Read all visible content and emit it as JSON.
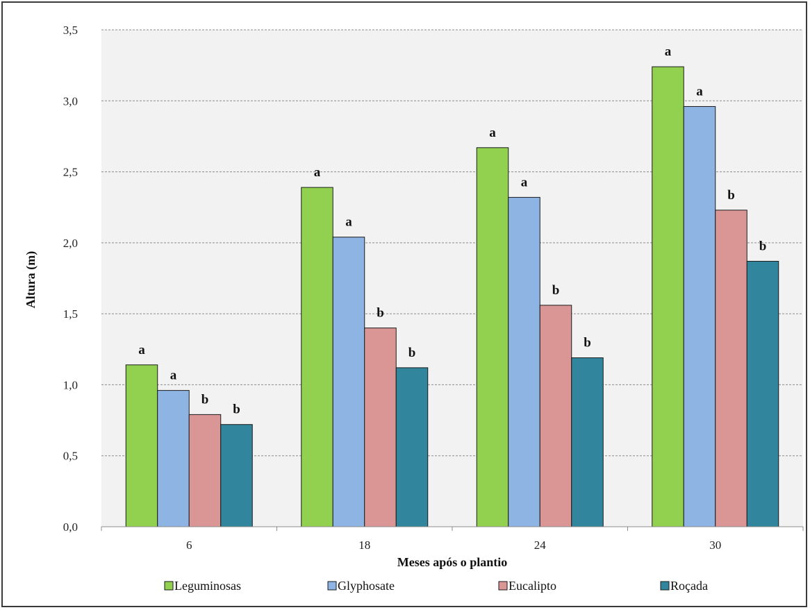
{
  "chart_data": {
    "type": "bar",
    "title": "",
    "xlabel": "Meses após o plantio",
    "ylabel": "Altura (m)",
    "categories": [
      "6",
      "18",
      "24",
      "30"
    ],
    "ylim": [
      0,
      3.5
    ],
    "yticks": [
      0,
      0.5,
      1.0,
      1.5,
      2.0,
      2.5,
      3.0,
      3.5
    ],
    "ytick_labels": [
      "0,0",
      "0,5",
      "1,0",
      "1,5",
      "2,0",
      "2,5",
      "3,0",
      "3,5"
    ],
    "grid": true,
    "legend_position": "bottom",
    "series": [
      {
        "name": "Leguminosas",
        "color": "#92d050",
        "values": [
          1.14,
          2.39,
          2.67,
          3.24
        ],
        "labels": [
          "a",
          "a",
          "a",
          "a"
        ]
      },
      {
        "name": "Glyphosate",
        "color": "#8eb4e3",
        "values": [
          0.96,
          2.04,
          2.32,
          2.96
        ],
        "labels": [
          "a",
          "a",
          "a",
          "a"
        ]
      },
      {
        "name": "Eucalipto",
        "color": "#d99694",
        "values": [
          0.79,
          1.4,
          1.56,
          2.23
        ],
        "labels": [
          "b",
          "b",
          "b",
          "b"
        ]
      },
      {
        "name": "Roçada",
        "color": "#31859c",
        "values": [
          0.72,
          1.12,
          1.19,
          1.87
        ],
        "labels": [
          "b",
          "b",
          "b",
          "b"
        ]
      }
    ],
    "plot_background": "#f2f2f2",
    "gridline_color": "#8c8c8c"
  }
}
